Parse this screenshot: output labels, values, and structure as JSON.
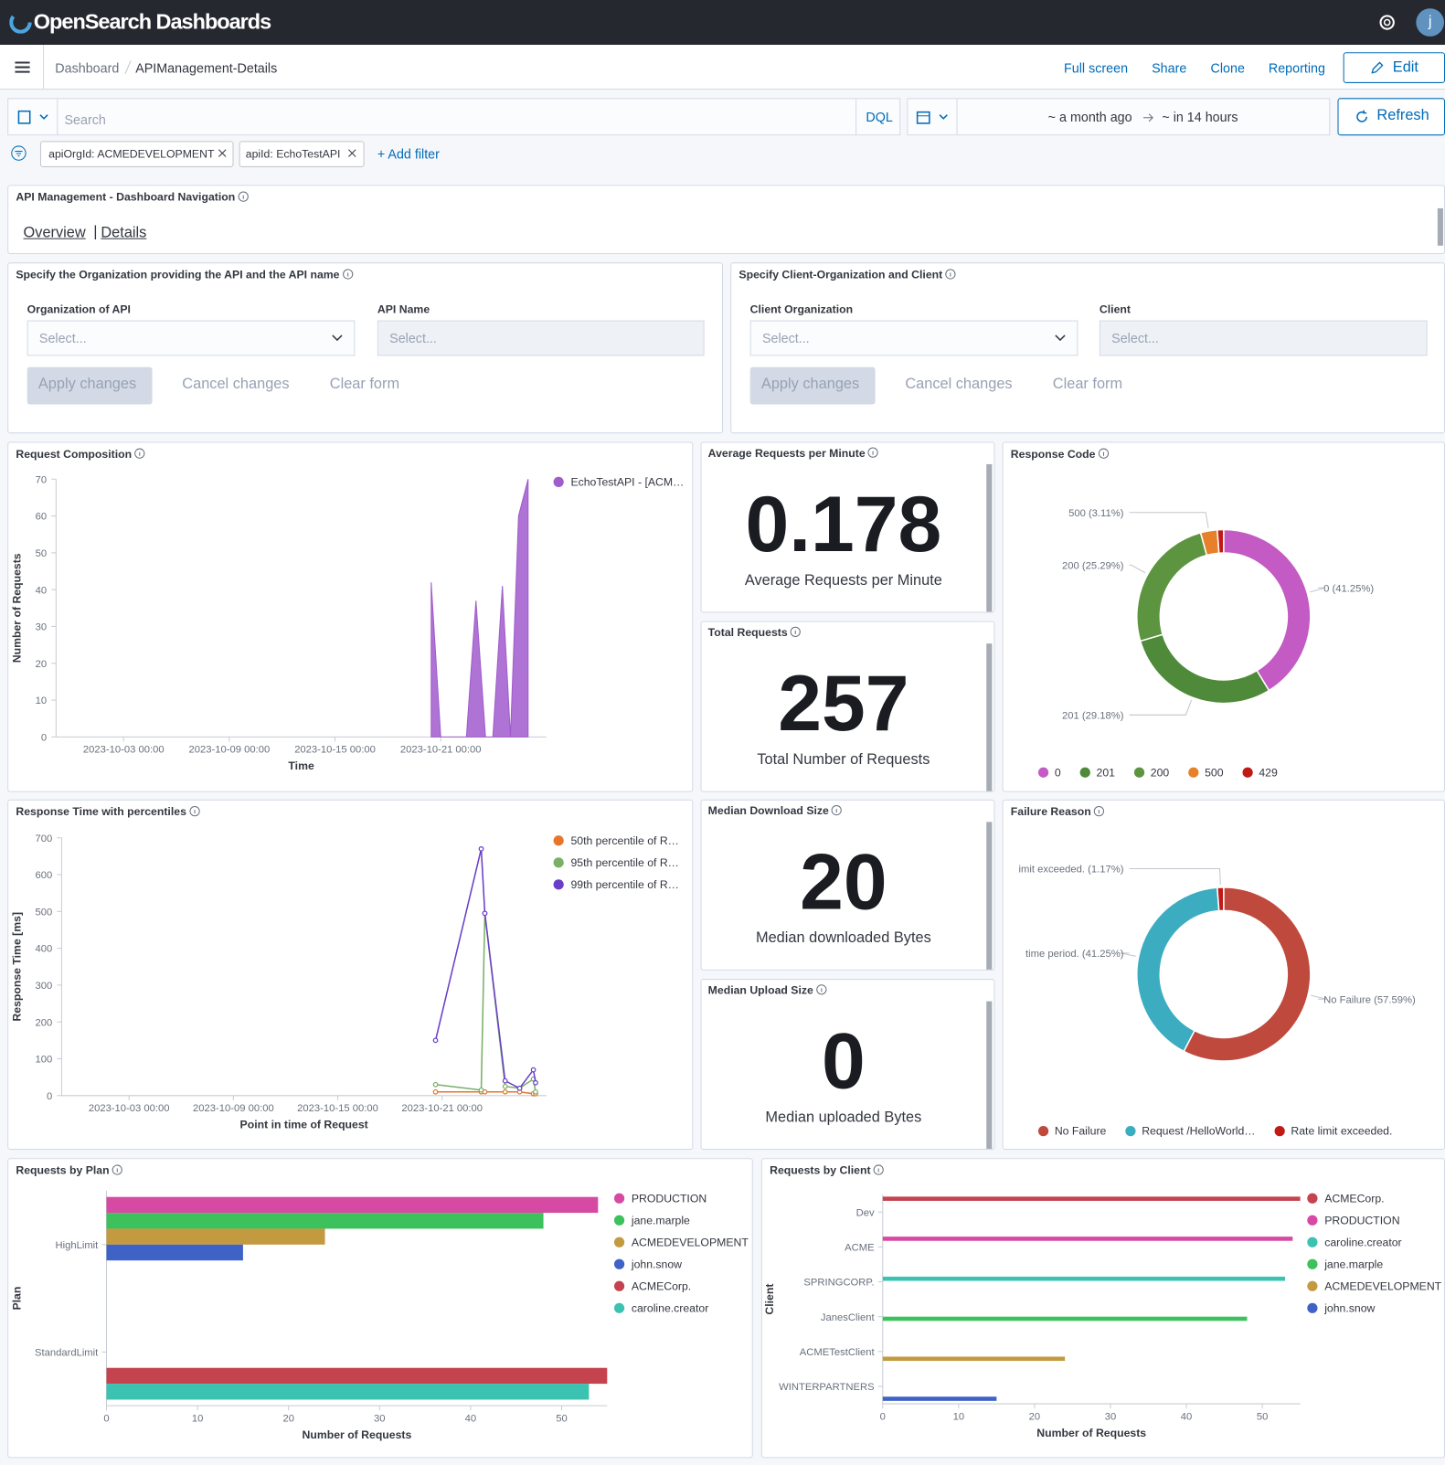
{
  "header": {
    "brand": "OpenSearch Dashboards",
    "avatar": "j"
  },
  "nav": {
    "breadcrumbs": [
      "Dashboard",
      "APIManagement-Details"
    ],
    "actions": [
      "Full screen",
      "Share",
      "Clone",
      "Reporting"
    ],
    "edit": "Edit"
  },
  "query": {
    "placeholder": "Search",
    "language": "DQL",
    "time_from": "~ a month ago",
    "time_to": "~ in 14 hours",
    "refresh": "Refresh"
  },
  "filters": {
    "pills": [
      "apiOrgId: ACMEDEVELOPMENT",
      "apiId: EchoTestAPI"
    ],
    "add": "+ Add filter"
  },
  "navigation": {
    "title": "API Management - Dashboard Navigation",
    "links": [
      "Overview",
      "Details"
    ],
    "separator": "|"
  },
  "controls": [
    {
      "title": "Specify the Organization providing the API and the API name",
      "fields": [
        {
          "label": "Organization of API",
          "placeholder": "Select..."
        },
        {
          "label": "API Name",
          "placeholder": "Select..."
        }
      ],
      "buttons": [
        "Apply changes",
        "Cancel changes",
        "Clear form"
      ]
    },
    {
      "title": "Specify Client-Organization and Client",
      "fields": [
        {
          "label": "Client Organization",
          "placeholder": "Select..."
        },
        {
          "label": "Client",
          "placeholder": "Select..."
        }
      ],
      "buttons": [
        "Apply changes",
        "Cancel changes",
        "Clear form"
      ]
    }
  ],
  "metrics": [
    {
      "title": "Average Requests per Minute",
      "value": 0.178,
      "label": "Average Requests per Minute"
    },
    {
      "title": "Total Requests",
      "value": 257,
      "label": "Total Number of Requests"
    },
    {
      "title": "Median Download Size",
      "value": 20,
      "label": "Median downloaded Bytes"
    },
    {
      "title": "Median Upload Size",
      "value": 0,
      "label": "Median uploaded Bytes"
    }
  ],
  "charts": [
    {
      "type": "area",
      "title": "Request Composition",
      "x_label": "Time",
      "y_label": "Number of Requests",
      "x": [
        "2023-10-20 11:00",
        "2023-10-21 00:00",
        "2023-10-22 11:00",
        "2023-10-23 00:00",
        "2023-10-23 13:00",
        "2023-10-23 23:00",
        "2023-10-24 12:00",
        "2023-10-24 23:00",
        "2023-10-25 10:00",
        "2023-10-25 23:00"
      ],
      "series": [
        {
          "name": "EchoTestAPI - [ACM…",
          "color": "#a05bcc",
          "values": [
            42,
            0,
            0,
            37,
            0,
            0,
            41,
            0,
            60,
            70
          ]
        }
      ],
      "xlim": [
        "2023-09-29 04:00",
        "2023-10-27 00:00"
      ],
      "xticks": [
        "2023-10-03 00:00",
        "2023-10-09 00:00",
        "2023-10-15 00:00",
        "2023-10-21 00:00"
      ],
      "ylim": [
        0,
        70
      ],
      "yticks": [
        0,
        10,
        20,
        30,
        40,
        50,
        60,
        70
      ]
    },
    {
      "type": "line",
      "title": "Response Time with percentiles",
      "x_label": "Point in time of Request",
      "y_label": "Response Time [ms]",
      "x": [
        "2023-10-20 15:00",
        "2023-10-23 06:00",
        "2023-10-23 11:00",
        "2023-10-24 15:00",
        "2023-10-25 11:00",
        "2023-10-26 06:00",
        "2023-10-26 09:00"
      ],
      "series": [
        {
          "name": "50th percentile of R…",
          "color": "#e7762c",
          "values": [
            10,
            10,
            10,
            10,
            10,
            5,
            5
          ]
        },
        {
          "name": "95th percentile of R…",
          "color": "#79b066",
          "values": [
            30,
            15,
            495,
            25,
            20,
            45,
            10
          ]
        },
        {
          "name": "99th percentile of R…",
          "color": "#6a3ec8",
          "values": [
            150,
            670,
            495,
            40,
            20,
            70,
            35
          ]
        }
      ],
      "xlim": [
        "2023-09-29 03:00",
        "2023-10-27 00:00"
      ],
      "xticks": [
        "2023-10-03 00:00",
        "2023-10-09 00:00",
        "2023-10-15 00:00",
        "2023-10-21 00:00"
      ],
      "ylim": [
        0,
        700
      ],
      "yticks": [
        0,
        100,
        200,
        300,
        400,
        500,
        600,
        700
      ]
    },
    {
      "type": "pie",
      "donut": true,
      "title": "Response Code",
      "categories": [
        "0",
        "201",
        "200",
        "500",
        "429"
      ],
      "values": [
        41.25,
        29.18,
        25.29,
        3.11,
        1.17
      ],
      "value_labels": [
        "0 (41.25%)",
        "201 (29.18%)",
        "200 (25.29%)",
        "500 (3.11%)",
        null
      ],
      "colors": [
        "#c45ac4",
        "#4f8a3a",
        "#5c943f",
        "#e7802a",
        "#bf1a16"
      ]
    },
    {
      "type": "pie",
      "donut": true,
      "title": "Failure Reason",
      "categories": [
        "No Failure",
        "Request /HelloWorld…",
        "Rate limit exceeded."
      ],
      "values": [
        57.59,
        41.25,
        1.17
      ],
      "value_labels": [
        "No Failure (57.59%)",
        "time period. (41.25%)",
        "imit exceeded. (1.17%)"
      ],
      "colors": [
        "#c0493e",
        "#3cadc0",
        "#bf1a16"
      ]
    },
    {
      "type": "bar",
      "orientation": "horizontal",
      "title": "Requests by Plan",
      "x_label": "Number of Requests",
      "y_label": "Plan",
      "categories": [
        "HighLimit",
        "StandardLimit"
      ],
      "series": [
        {
          "name": "PRODUCTION",
          "color": "#d64aa3",
          "values": [
            54,
            null
          ]
        },
        {
          "name": "jane.marple",
          "color": "#3dc15c",
          "values": [
            48,
            null
          ]
        },
        {
          "name": "ACMEDEVELOPMENT",
          "color": "#c39a3f",
          "values": [
            24,
            null
          ]
        },
        {
          "name": "john.snow",
          "color": "#3f62c6",
          "values": [
            15,
            null
          ]
        },
        {
          "name": "ACMECorp.",
          "color": "#c4434e",
          "values": [
            null,
            55
          ]
        },
        {
          "name": "caroline.creator",
          "color": "#3cc2b0",
          "values": [
            null,
            53
          ]
        }
      ],
      "xlim": [
        0,
        55
      ],
      "xticks": [
        0,
        10,
        20,
        30,
        40,
        50
      ]
    },
    {
      "type": "bar",
      "orientation": "horizontal",
      "title": "Requests by Client",
      "x_label": "Number of Requests",
      "y_label": "Client",
      "categories": [
        "Dev",
        "ACME",
        "SPRINGCORP.",
        "JanesClient",
        "ACMETestClient",
        "WINTERPARTNERS"
      ],
      "series": [
        {
          "name": "ACMECorp.",
          "color": "#c4434e",
          "values": [
            55,
            null,
            null,
            null,
            null,
            null
          ]
        },
        {
          "name": "PRODUCTION",
          "color": "#d64aa3",
          "values": [
            null,
            54,
            null,
            null,
            null,
            null
          ]
        },
        {
          "name": "caroline.creator",
          "color": "#3cc2b0",
          "values": [
            null,
            null,
            53,
            null,
            null,
            null
          ]
        },
        {
          "name": "jane.marple",
          "color": "#3dc15c",
          "values": [
            null,
            null,
            null,
            48,
            null,
            null
          ]
        },
        {
          "name": "ACMEDEVELOPMENT",
          "color": "#c39a3f",
          "values": [
            null,
            null,
            null,
            null,
            24,
            null
          ]
        },
        {
          "name": "john.snow",
          "color": "#3f62c6",
          "values": [
            null,
            null,
            null,
            null,
            null,
            15
          ]
        }
      ],
      "xlim": [
        0,
        55
      ],
      "xticks": [
        0,
        10,
        20,
        30,
        40,
        50
      ]
    }
  ]
}
